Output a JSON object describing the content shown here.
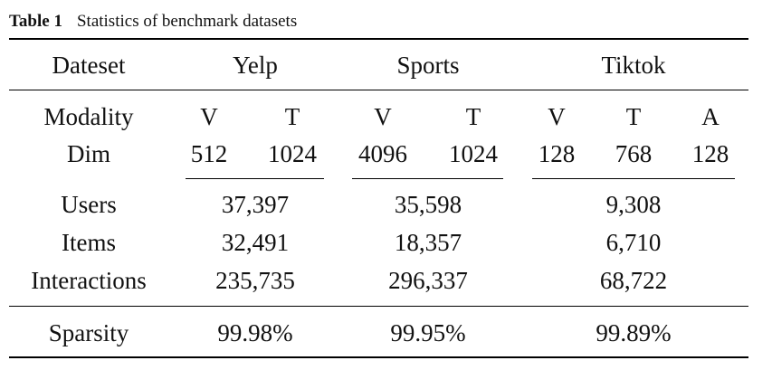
{
  "caption": {
    "label": "Table 1",
    "text": "Statistics of benchmark datasets"
  },
  "header": {
    "row_label": "Dateset",
    "datasets": [
      "Yelp",
      "Sports",
      "Tiktok"
    ]
  },
  "modality": {
    "label": "Modality",
    "yelp": [
      "V",
      "T"
    ],
    "sports": [
      "V",
      "T"
    ],
    "tiktok": [
      "V",
      "T",
      "A"
    ]
  },
  "dim": {
    "label": "Dim",
    "yelp": [
      "512",
      "1024"
    ],
    "sports": [
      "4096",
      "1024"
    ],
    "tiktok": [
      "128",
      "768",
      "128"
    ]
  },
  "stats": [
    {
      "label": "Users",
      "yelp": "37,397",
      "sports": "35,598",
      "tiktok": "9,308"
    },
    {
      "label": "Items",
      "yelp": "32,491",
      "sports": "18,357",
      "tiktok": "6,710"
    },
    {
      "label": "Interactions",
      "yelp": "235,735",
      "sports": "296,337",
      "tiktok": "68,722"
    }
  ],
  "sparsity": {
    "label": "Sparsity",
    "yelp": "99.98%",
    "sports": "99.95%",
    "tiktok": "99.89%"
  }
}
